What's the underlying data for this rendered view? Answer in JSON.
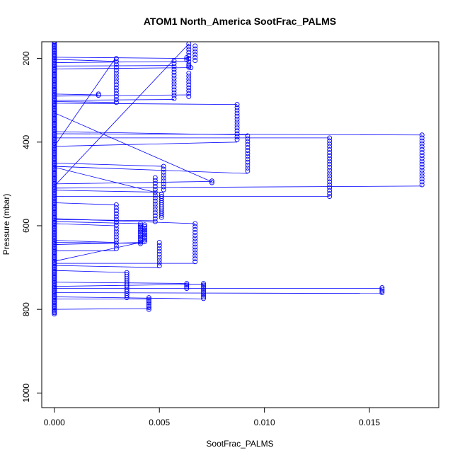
{
  "chart_data": {
    "type": "scatter",
    "title": "ATOM1 North_America SootFrac_PALMS",
    "xlabel": "SootFrac_PALMS",
    "ylabel": "Pressure (mbar)",
    "xlim": [
      -0.0006,
      0.0183
    ],
    "ylim": [
      1035,
      160
    ],
    "y_reversed": true,
    "x_ticks": [
      0.0,
      0.005,
      0.01,
      0.015
    ],
    "x_tick_labels": [
      "0.000",
      "0.005",
      "0.010",
      "0.015"
    ],
    "y_ticks": [
      200,
      400,
      600,
      800,
      1000
    ],
    "y_tick_labels": [
      "200",
      "400",
      "600",
      "800",
      "1000"
    ],
    "grid": false,
    "legend": "none",
    "colors": {
      "series": "#0000ff",
      "axes": "#000000"
    },
    "series": [
      {
        "marker": "open-circle",
        "line": true,
        "columns": [
          {
            "x": 0.0,
            "p_start": 160,
            "p_end": 812,
            "step": 3
          },
          {
            "x": 0.00295,
            "p_start": 200,
            "p_end": 305,
            "step": 7
          },
          {
            "x": 0.00295,
            "p_start": 550,
            "p_end": 660,
            "step": 7
          },
          {
            "x": 0.00345,
            "p_start": 712,
            "p_end": 775,
            "step": 5
          },
          {
            "x": 0.0041,
            "p_start": 595,
            "p_end": 645,
            "step": 4
          },
          {
            "x": 0.0043,
            "p_start": 598,
            "p_end": 640,
            "step": 4
          },
          {
            "x": 0.0045,
            "p_start": 772,
            "p_end": 800,
            "step": 4
          },
          {
            "x": 0.0048,
            "p_start": 485,
            "p_end": 590,
            "step": 7
          },
          {
            "x": 0.005,
            "p_start": 640,
            "p_end": 700,
            "step": 7
          },
          {
            "x": 0.0051,
            "p_start": 525,
            "p_end": 582,
            "step": 5
          },
          {
            "x": 0.0052,
            "p_start": 458,
            "p_end": 520,
            "step": 7
          },
          {
            "x": 0.0057,
            "p_start": 205,
            "p_end": 300,
            "step": 7
          },
          {
            "x": 0.0063,
            "p_start": 738,
            "p_end": 752,
            "step": 4
          },
          {
            "x": 0.0064,
            "p_start": 165,
            "p_end": 225,
            "step": 7
          },
          {
            "x": 0.0064,
            "p_start": 235,
            "p_end": 295,
            "step": 7
          },
          {
            "x": 0.0067,
            "p_start": 170,
            "p_end": 210,
            "step": 7
          },
          {
            "x": 0.0067,
            "p_start": 595,
            "p_end": 690,
            "step": 7
          },
          {
            "x": 0.0071,
            "p_start": 738,
            "p_end": 775,
            "step": 4
          },
          {
            "x": 0.0087,
            "p_start": 310,
            "p_end": 400,
            "step": 7
          },
          {
            "x": 0.0092,
            "p_start": 385,
            "p_end": 475,
            "step": 7
          },
          {
            "x": 0.0131,
            "p_start": 390,
            "p_end": 530,
            "step": 7
          },
          {
            "x": 0.0156,
            "p_start": 748,
            "p_end": 762,
            "step": 4
          },
          {
            "x": 0.0175,
            "p_start": 383,
            "p_end": 505,
            "step": 7
          }
        ],
        "points": [
          {
            "x": 0.0021,
            "y": 285
          },
          {
            "x": 0.0021,
            "y": 288
          },
          {
            "x": 0.0075,
            "y": 493
          },
          {
            "x": 0.0075,
            "y": 497
          },
          {
            "x": 0.0063,
            "y": 198
          },
          {
            "x": 0.0063,
            "y": 203
          },
          {
            "x": 0.0064,
            "y": 218
          },
          {
            "x": 0.0065,
            "y": 222
          }
        ],
        "segments": [
          [
            0.0,
            197,
            0.0064,
            200
          ],
          [
            0.0,
            202,
            0.0029,
            207
          ],
          [
            0.0,
            210,
            0.0064,
            207
          ],
          [
            0.0,
            218,
            0.0057,
            217
          ],
          [
            0.0,
            225,
            0.0064,
            222
          ],
          [
            0.0,
            285,
            0.0021,
            287
          ],
          [
            0.0,
            290,
            0.0064,
            287
          ],
          [
            0.0,
            300,
            0.0057,
            298
          ],
          [
            0.0,
            303,
            0.0029,
            305
          ],
          [
            0.0,
            307,
            0.0087,
            310
          ],
          [
            0.0,
            330,
            0.0075,
            495
          ],
          [
            0.0,
            375,
            0.0092,
            383
          ],
          [
            0.0,
            380,
            0.0175,
            383
          ],
          [
            0.0,
            390,
            0.0131,
            390
          ],
          [
            0.0,
            410,
            0.0087,
            400
          ],
          [
            0.0,
            410,
            0.0029,
            200
          ],
          [
            0.0,
            450,
            0.0052,
            458
          ],
          [
            0.0,
            458,
            0.0092,
            475
          ],
          [
            0.0,
            460,
            0.0048,
            520
          ],
          [
            0.0,
            500,
            0.0075,
            494
          ],
          [
            0.0,
            505,
            0.0064,
            165
          ],
          [
            0.0,
            510,
            0.0175,
            505
          ],
          [
            0.0,
            515,
            0.0052,
            520
          ],
          [
            0.0,
            530,
            0.0131,
            530
          ],
          [
            0.0,
            545,
            0.0029,
            550
          ],
          [
            0.0,
            583,
            0.0067,
            595
          ],
          [
            0.0,
            585,
            0.0048,
            588
          ],
          [
            0.0,
            590,
            0.0041,
            595
          ],
          [
            0.0,
            595,
            0.0029,
            600
          ],
          [
            0.0,
            635,
            0.0029,
            640
          ],
          [
            0.0,
            640,
            0.0043,
            642
          ],
          [
            0.0,
            645,
            0.0041,
            640
          ],
          [
            0.0,
            660,
            0.0029,
            660
          ],
          [
            0.0,
            690,
            0.0067,
            690
          ],
          [
            0.0,
            695,
            0.005,
            700
          ],
          [
            0.0,
            707,
            0.0035,
            712
          ],
          [
            0.0,
            735,
            0.0063,
            738
          ],
          [
            0.0,
            745,
            0.0071,
            740
          ],
          [
            0.0,
            750,
            0.0156,
            750
          ],
          [
            0.0,
            760,
            0.0156,
            762
          ],
          [
            0.0,
            770,
            0.0071,
            775
          ],
          [
            0.0,
            775,
            0.0045,
            775
          ],
          [
            0.0,
            800,
            0.0045,
            798
          ],
          [
            0.0,
            685,
            0.0041,
            640
          ]
        ]
      }
    ]
  }
}
